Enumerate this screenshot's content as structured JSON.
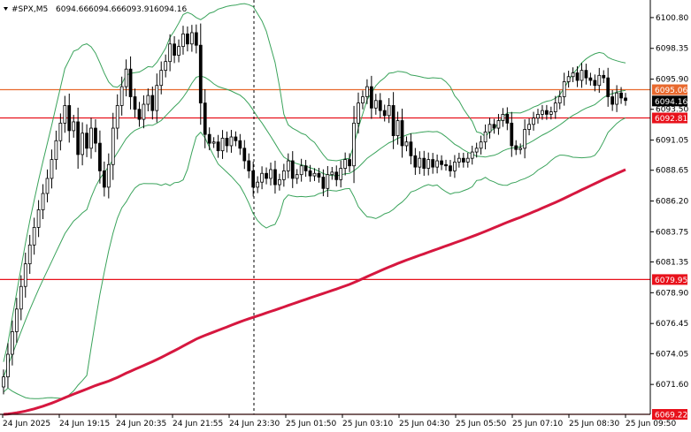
{
  "chart_data": {
    "type": "candlestick",
    "header": {
      "symbol": "#SPX,M5",
      "open": "6094.66",
      "high": "6094.66",
      "low": "6093.91",
      "close": "6094.16"
    },
    "ylim": [
      6069.22,
      6102.2
    ],
    "y_ticks": [
      "6100.80",
      "6098.35",
      "6095.90",
      "6093.50",
      "6091.05",
      "6088.65",
      "6086.20",
      "6083.75",
      "6081.35",
      "6078.90",
      "6076.45",
      "6074.05",
      "6071.60"
    ],
    "x_ticks": [
      "24 Jun 2025",
      "24 Jun 19:15",
      "24 Jun 20:35",
      "24 Jun 21:55",
      "24 Jun 23:30",
      "25 Jun 01:50",
      "25 Jun 03:10",
      "25 Jun 04:30",
      "25 Jun 05:50",
      "25 Jun 07:10",
      "25 Jun 08:30",
      "25 Jun 09:50"
    ],
    "horizontal_lines": [
      {
        "value": 6095.06,
        "label": "6095.06",
        "color": "#e8692e"
      },
      {
        "value": 6092.81,
        "label": "6092.81",
        "color": "#e8111b"
      },
      {
        "value": 6079.95,
        "label": "6079.95",
        "color": "#e8111b"
      },
      {
        "value": 6069.22,
        "label": "6069.22",
        "color": "#e8111b"
      }
    ],
    "current_price": {
      "value": 6094.16,
      "label": "6094.16"
    },
    "vertical_marker": "24 Jun 23:30",
    "close_series": [
      6072.2,
      6074.0,
      6075.8,
      6077.6,
      6079.4,
      6081.2,
      6082.7,
      6084.1,
      6085.5,
      6086.8,
      6088.0,
      6089.5,
      6091.0,
      6092.4,
      6093.8,
      6091.8,
      6092.5,
      6089.9,
      6091.6,
      6090.4,
      6092.0,
      6090.8,
      6088.6,
      6087.3,
      6089.1,
      6092.0,
      6093.8,
      6095.3,
      6096.7,
      6094.5,
      6093.5,
      6092.7,
      6093.9,
      6094.6,
      6093.4,
      6095.4,
      6096.6,
      6097.3,
      6098.7,
      6097.8,
      6098.5,
      6099.5,
      6098.7,
      6099.6,
      6098.6,
      6094.0,
      6091.5,
      6090.8,
      6090.9,
      6090.2,
      6091.2,
      6090.6,
      6091.3,
      6091.0,
      6090.4,
      6089.4,
      6088.6,
      6087.3,
      6087.7,
      6088.4,
      6088.0,
      6088.7,
      6087.5,
      6087.9,
      6088.6,
      6089.4,
      6088.0,
      6088.3,
      6089.0,
      6088.6,
      6088.2,
      6088.4,
      6088.1,
      6087.2,
      6088.3,
      6088.5,
      6087.9,
      6088.8,
      6089.5,
      6089.0,
      6092.4,
      6094.0,
      6094.5,
      6095.3,
      6093.6,
      6094.2,
      6093.4,
      6093.0,
      6093.8,
      6091.4,
      6092.6,
      6090.6,
      6090.9,
      6089.8,
      6088.9,
      6089.6,
      6088.8,
      6089.5,
      6088.9,
      6089.4,
      6089.1,
      6089.0,
      6088.6,
      6089.3,
      6089.6,
      6089.3,
      6089.6,
      6090.1,
      6090.4,
      6090.9,
      6091.7,
      6092.3,
      6092.0,
      6092.6,
      6093.1,
      6092.4,
      6090.6,
      6090.3,
      6090.4,
      6091.9,
      6092.3,
      6092.8,
      6093.1,
      6093.4,
      6093.1,
      6093.3,
      6094.0,
      6094.5,
      6095.7,
      6096.1,
      6096.4,
      6095.8,
      6096.6,
      6096.0,
      6095.8,
      6095.4,
      6096.2,
      6096.0,
      6094.5,
      6093.9,
      6094.8,
      6094.4,
      6094.2
    ]
  },
  "colors": {
    "candle": "#000000",
    "bollinger": "#3aa35b",
    "moving_average": "#d6173f",
    "axis": "#000000",
    "price_tag_bg": "#000000"
  }
}
